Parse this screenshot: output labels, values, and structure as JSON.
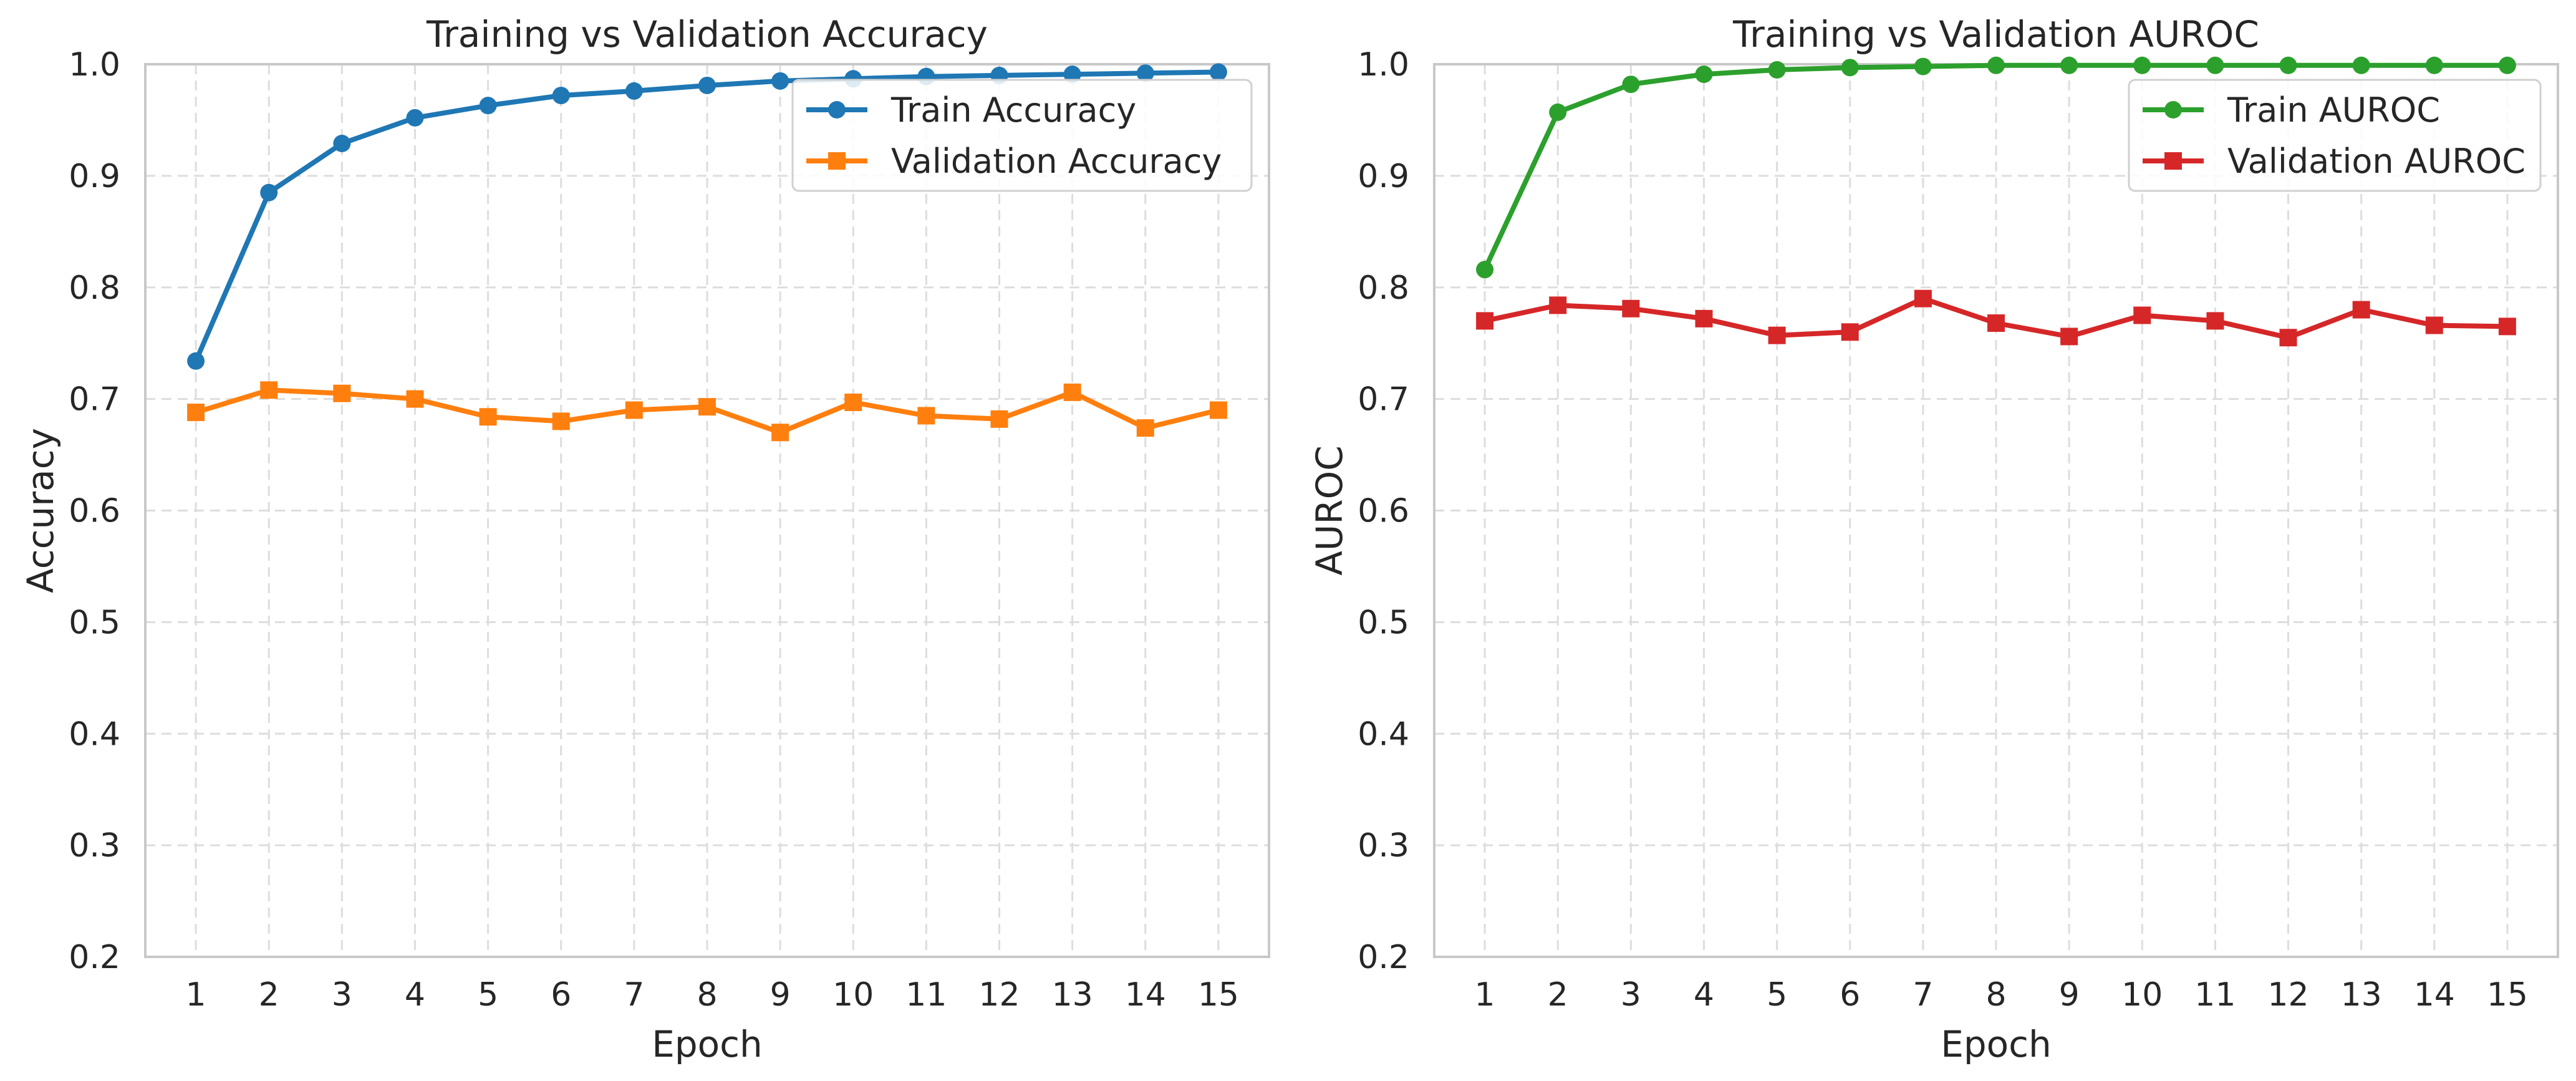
{
  "chart_data": [
    {
      "type": "line",
      "title": "Training vs Validation Accuracy",
      "xlabel": "Epoch",
      "ylabel": "Accuracy",
      "ylim": [
        0.2,
        1.0
      ],
      "yticks": [
        "0.2",
        "0.3",
        "0.4",
        "0.5",
        "0.6",
        "0.7",
        "0.8",
        "0.9",
        "1.0"
      ],
      "x": [
        1,
        2,
        3,
        4,
        5,
        6,
        7,
        8,
        9,
        10,
        11,
        12,
        13,
        14,
        15
      ],
      "grid": true,
      "legend_position": "top-right",
      "series": [
        {
          "name": "Train Accuracy",
          "color": "#1f77b4",
          "marker": "circle",
          "values": [
            0.734,
            0.885,
            0.929,
            0.952,
            0.963,
            0.972,
            0.976,
            0.981,
            0.985,
            0.987,
            0.989,
            0.99,
            0.991,
            0.992,
            0.993
          ]
        },
        {
          "name": "Validation Accuracy",
          "color": "#ff7f0e",
          "marker": "square",
          "values": [
            0.688,
            0.708,
            0.705,
            0.7,
            0.684,
            0.68,
            0.69,
            0.693,
            0.67,
            0.697,
            0.685,
            0.682,
            0.706,
            0.674,
            0.69
          ]
        }
      ]
    },
    {
      "type": "line",
      "title": "Training vs Validation AUROC",
      "xlabel": "Epoch",
      "ylabel": "AUROC",
      "ylim": [
        0.2,
        1.0
      ],
      "yticks": [
        "0.2",
        "0.3",
        "0.4",
        "0.5",
        "0.6",
        "0.7",
        "0.8",
        "0.9",
        "1.0"
      ],
      "x": [
        1,
        2,
        3,
        4,
        5,
        6,
        7,
        8,
        9,
        10,
        11,
        12,
        13,
        14,
        15
      ],
      "grid": true,
      "legend_position": "top-right",
      "series": [
        {
          "name": "Train AUROC",
          "color": "#2ca02c",
          "marker": "circle",
          "values": [
            0.816,
            0.957,
            0.982,
            0.991,
            0.995,
            0.997,
            0.998,
            0.999,
            0.999,
            0.999,
            0.999,
            0.999,
            0.999,
            0.999,
            0.999
          ]
        },
        {
          "name": "Validation AUROC",
          "color": "#d62728",
          "marker": "square",
          "values": [
            0.77,
            0.784,
            0.781,
            0.772,
            0.757,
            0.76,
            0.79,
            0.768,
            0.756,
            0.775,
            0.77,
            0.755,
            0.78,
            0.766,
            0.765
          ]
        }
      ]
    }
  ]
}
